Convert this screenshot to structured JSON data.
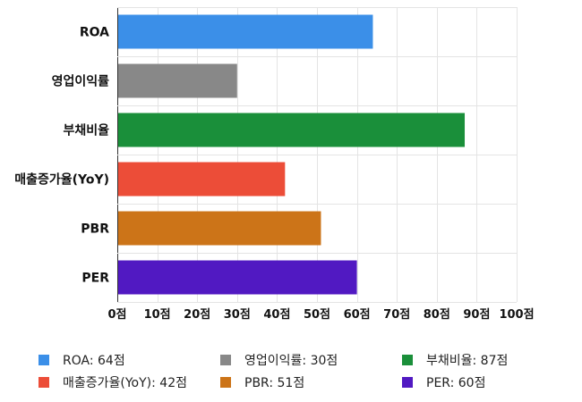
{
  "chart_data": {
    "type": "bar",
    "orientation": "horizontal",
    "categories": [
      "ROA",
      "영업이익률",
      "부채비율",
      "매출증가율(YoY)",
      "PBR",
      "PER"
    ],
    "values": [
      64,
      30,
      87,
      42,
      51,
      60
    ],
    "colors": [
      "#3b8fe8",
      "#888888",
      "#1a8f3a",
      "#ec4d38",
      "#cc7418",
      "#5119c2"
    ],
    "xlim": [
      0,
      100
    ],
    "x_ticks": [
      0,
      10,
      20,
      30,
      40,
      50,
      60,
      70,
      80,
      90,
      100
    ],
    "tick_suffix": "점",
    "grid": true,
    "legend_placement": "bottom",
    "legend": [
      {
        "label": "ROA: 64점",
        "color": "#3b8fe8"
      },
      {
        "label": "영업이익률: 30점",
        "color": "#888888"
      },
      {
        "label": "부채비율: 87점",
        "color": "#1a8f3a"
      },
      {
        "label": "매출증가율(YoY): 42점",
        "color": "#ec4d38"
      },
      {
        "label": "PBR: 51점",
        "color": "#cc7418"
      },
      {
        "label": "PER: 60점",
        "color": "#5119c2"
      }
    ]
  }
}
